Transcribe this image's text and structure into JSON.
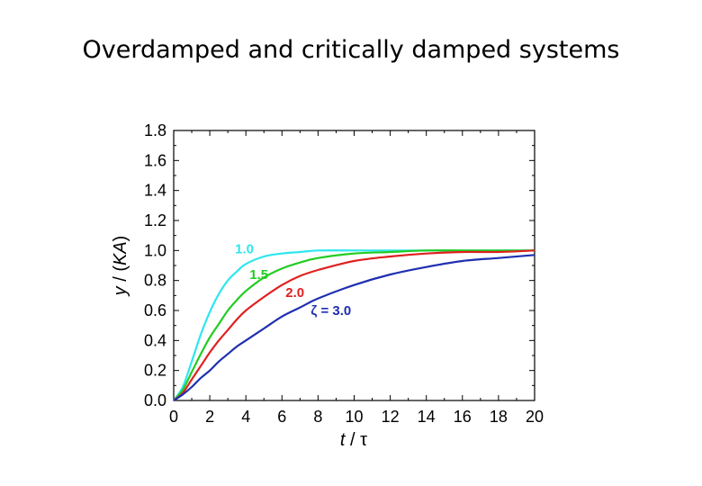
{
  "slide": {
    "title": "Overdamped and critically damped systems"
  },
  "chart_data": {
    "type": "line",
    "xlabel_var": "t",
    "xlabel_sep": " / ",
    "xlabel_unit": "τ",
    "ylabel_var": "y",
    "ylabel_mid": " / (",
    "ylabel_unit": "KA",
    "ylabel_end": ")",
    "xlim": [
      0,
      20
    ],
    "ylim": [
      0,
      1.8
    ],
    "x_ticks": [
      "0",
      "2",
      "4",
      "6",
      "8",
      "10",
      "12",
      "14",
      "16",
      "18",
      "20"
    ],
    "y_ticks": [
      "0.0",
      "0.2",
      "0.4",
      "0.6",
      "0.8",
      "1.0",
      "1.2",
      "1.4",
      "1.6",
      "1.8"
    ],
    "grid": false,
    "series": [
      {
        "name": "1.0",
        "color": "#2ee6ee",
        "x": [
          0,
          0.5,
          1,
          1.5,
          2,
          2.5,
          3,
          3.5,
          4,
          5,
          6,
          7,
          8,
          10,
          12,
          14,
          16,
          18,
          20
        ],
        "y": [
          0,
          0.09,
          0.26,
          0.44,
          0.59,
          0.71,
          0.8,
          0.86,
          0.91,
          0.96,
          0.98,
          0.99,
          1.0,
          1.0,
          1.0,
          1.0,
          1.0,
          1.0,
          1.0
        ]
      },
      {
        "name": "1.5",
        "color": "#22cc22",
        "x": [
          0,
          0.5,
          1,
          1.5,
          2,
          2.5,
          3,
          3.5,
          4,
          5,
          6,
          7,
          8,
          10,
          12,
          14,
          16,
          18,
          20
        ],
        "y": [
          0,
          0.07,
          0.19,
          0.31,
          0.42,
          0.51,
          0.6,
          0.67,
          0.73,
          0.82,
          0.88,
          0.92,
          0.95,
          0.98,
          0.99,
          1.0,
          1.0,
          1.0,
          1.0
        ]
      },
      {
        "name": "2.0",
        "color": "#e02020",
        "x": [
          0,
          0.5,
          1,
          1.5,
          2,
          2.5,
          3,
          3.5,
          4,
          5,
          6,
          7,
          8,
          10,
          12,
          14,
          16,
          18,
          20
        ],
        "y": [
          0,
          0.05,
          0.14,
          0.23,
          0.32,
          0.4,
          0.47,
          0.54,
          0.6,
          0.69,
          0.77,
          0.83,
          0.87,
          0.93,
          0.96,
          0.98,
          0.99,
          0.99,
          1.0
        ]
      },
      {
        "name": "ζ = 3.0",
        "color": "#1f2fb0",
        "x": [
          0,
          0.5,
          1,
          1.5,
          2,
          2.5,
          3,
          3.5,
          4,
          5,
          6,
          7,
          8,
          10,
          12,
          14,
          16,
          18,
          20
        ],
        "y": [
          0,
          0.04,
          0.09,
          0.15,
          0.2,
          0.26,
          0.31,
          0.36,
          0.4,
          0.48,
          0.56,
          0.62,
          0.68,
          0.77,
          0.84,
          0.89,
          0.93,
          0.95,
          0.97
        ]
      }
    ],
    "annotations": [
      {
        "text": "1.0",
        "color": "#2ee6ee",
        "x": 3.4,
        "y": 0.98
      },
      {
        "text": "1.5",
        "color": "#22cc22",
        "x": 4.2,
        "y": 0.81
      },
      {
        "text": "2.0",
        "color": "#e02020",
        "x": 6.2,
        "y": 0.69
      },
      {
        "text": "ζ = 3.0",
        "color": "#1f2fb0",
        "x": 7.6,
        "y": 0.57
      }
    ]
  }
}
